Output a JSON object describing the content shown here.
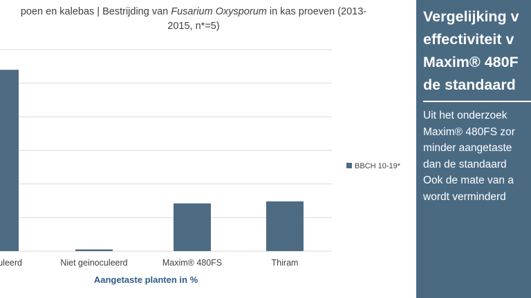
{
  "chart_title": {
    "line1_prefix": "poen en kalebas | Bestrijding van ",
    "line1_italic": "Fusarium Oxysporum",
    "line1_suffix": " in kas proeven (2013-",
    "line2": "2015, n*=5)"
  },
  "chart_data": {
    "type": "bar",
    "categories": [
      "oculeerd",
      "Niet geinoculeerd",
      "Maxim® 480FS",
      "Thiram"
    ],
    "series": [
      {
        "name": "BBCH 10-19*",
        "values": [
          54,
          0.5,
          14.2,
          14.8
        ]
      }
    ],
    "xlabel": "Aangetaste planten in %",
    "ylabel": "",
    "ylim": [
      0,
      60
    ],
    "grid": true,
    "legend_position": "right",
    "colors": {
      "bar": "#4d6b82",
      "grid": "#d9d9d9",
      "axis_label": "#2e5c8a"
    }
  },
  "side_panel": {
    "title_lines": [
      "Vergelijking v",
      "effectiviteit v",
      "Maxim® 480F",
      "de standaard"
    ],
    "body_lines": [
      "Uit het onderzoek",
      "Maxim® 480FS zor",
      "minder aangetaste",
      "dan de standaard",
      "Ook de mate van a",
      "wordt verminderd"
    ],
    "background": "#4a6a82"
  }
}
